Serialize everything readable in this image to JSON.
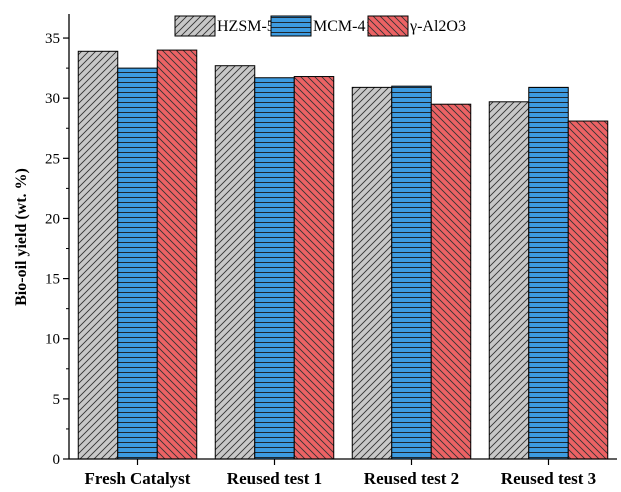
{
  "chart_data": {
    "type": "bar",
    "title": "",
    "xlabel": "",
    "ylabel": "Bio-oil yield (wt. %)",
    "ylim": [
      0,
      37
    ],
    "yticks": [
      0,
      5,
      10,
      15,
      20,
      25,
      30,
      35
    ],
    "categories": [
      "Fresh Catalyst",
      "Reused test 1",
      "Reused test 2",
      "Reused test 3"
    ],
    "series": [
      {
        "name": "HZSM-5",
        "values": [
          33.9,
          32.7,
          30.9,
          29.7
        ],
        "color": "#c8c8c8",
        "pattern": "diagonal-up"
      },
      {
        "name": "MCM-41",
        "values": [
          32.5,
          31.7,
          31.0,
          30.9
        ],
        "color": "#3d9be0",
        "pattern": "horizontal"
      },
      {
        "name": "γ-Al2O3",
        "values": [
          34.0,
          31.8,
          29.5,
          28.1
        ],
        "color": "#ec6264",
        "pattern": "diagonal-down"
      }
    ],
    "legend": "top-center",
    "grid": false
  }
}
